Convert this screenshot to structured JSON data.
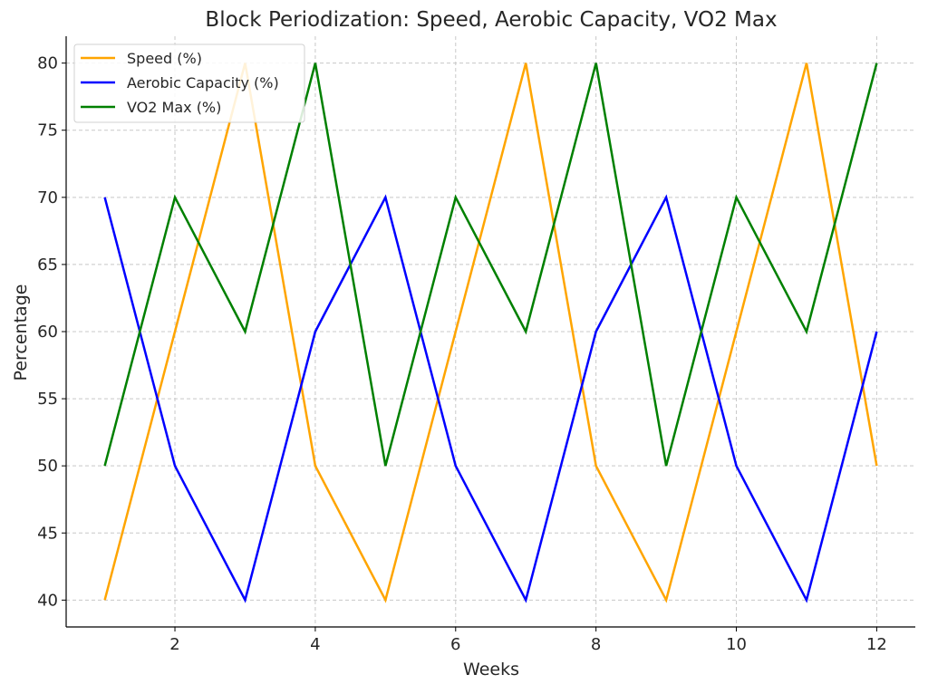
{
  "chart_data": {
    "type": "line",
    "title": "Block Periodization: Speed, Aerobic Capacity, VO2 Max",
    "xlabel": "Weeks",
    "ylabel": "Percentage",
    "x": [
      1,
      2,
      3,
      4,
      5,
      6,
      7,
      8,
      9,
      10,
      11,
      12
    ],
    "xlim": [
      0.45,
      12.55
    ],
    "ylim": [
      38,
      82
    ],
    "xticks": [
      2,
      4,
      6,
      8,
      10,
      12
    ],
    "yticks": [
      40,
      45,
      50,
      55,
      60,
      65,
      70,
      75,
      80
    ],
    "grid": true,
    "legend_position": "top-left",
    "series": [
      {
        "name": "Speed (%)",
        "color": "#FFA500",
        "values": [
          40,
          60,
          80,
          50,
          40,
          60,
          80,
          50,
          40,
          60,
          80,
          50
        ]
      },
      {
        "name": "Aerobic Capacity (%)",
        "color": "#0000FF",
        "values": [
          70,
          50,
          40,
          60,
          70,
          50,
          40,
          60,
          70,
          50,
          40,
          60
        ]
      },
      {
        "name": "VO2 Max (%)",
        "color": "#008000",
        "values": [
          50,
          70,
          60,
          80,
          50,
          70,
          60,
          80,
          50,
          70,
          60,
          80
        ]
      }
    ]
  }
}
